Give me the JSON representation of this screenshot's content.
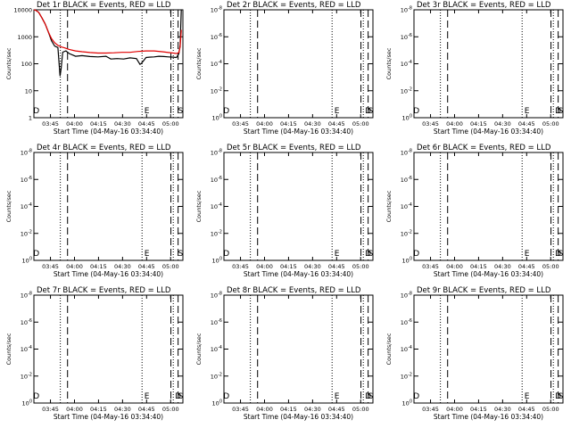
{
  "figure": {
    "background": "#ffffff",
    "axis_color": "#000000"
  },
  "chart_data": [
    {
      "type": "line",
      "title": "Det 1r BLACK = Events, RED = LLD",
      "xlabel": "Start Time (04-May-16 03:34:40)",
      "ylabel": "Counts/sec",
      "yscale": "log",
      "ylim": [
        1,
        10000
      ],
      "yticks": [
        {
          "value": 1,
          "label": "1"
        },
        {
          "value": 10,
          "label": "10"
        },
        {
          "value": 100,
          "label": "100"
        },
        {
          "value": 1000,
          "label": "1000"
        },
        {
          "value": 10000,
          "label": "10000"
        }
      ],
      "xlim_min": [
        0,
        93
      ],
      "xticks": [
        {
          "min": 10.33,
          "label": "03:45"
        },
        {
          "min": 25.33,
          "label": "04:00"
        },
        {
          "min": 40.33,
          "label": "04:15"
        },
        {
          "min": 55.33,
          "label": "04:30"
        },
        {
          "min": 70.33,
          "label": "04:45"
        },
        {
          "min": 85.33,
          "label": "05:00"
        }
      ],
      "markers": [
        {
          "min": 1.5,
          "label": "D"
        },
        {
          "min": 70.5,
          "label": "E"
        },
        {
          "min": 91.5,
          "label": "S"
        }
      ],
      "vlines_dotted": [
        16.5,
        67.5,
        87.0
      ],
      "vlines_dashed": [
        21.0,
        85.5,
        90.0
      ],
      "series": [
        {
          "name": "Events",
          "color": "#000000",
          "x": [
            0,
            1,
            3,
            5,
            7,
            9,
            11,
            13,
            15,
            16.3,
            17,
            18,
            20,
            22,
            26,
            30,
            35,
            40,
            45,
            48,
            52,
            56,
            60,
            64,
            66.2,
            66.8,
            68,
            70,
            72,
            75,
            78,
            81,
            84,
            87,
            89,
            90.5,
            91.3,
            92
          ],
          "y": [
            10000,
            9800,
            8000,
            5000,
            3000,
            1500,
            700,
            450,
            400,
            35,
            65,
            270,
            300,
            240,
            190,
            200,
            185,
            180,
            190,
            150,
            155,
            150,
            165,
            155,
            95,
            100,
            120,
            170,
            175,
            180,
            190,
            185,
            180,
            175,
            170,
            240,
            500,
            10000
          ]
        },
        {
          "name": "LLD",
          "color": "#e00000",
          "x": [
            0,
            1,
            3,
            5,
            7,
            9,
            11,
            13,
            15,
            17,
            19,
            22,
            26,
            30,
            35,
            40,
            45,
            50,
            55,
            60,
            65,
            70,
            75,
            80,
            84,
            87,
            89,
            90.5,
            91.3,
            92
          ],
          "y": [
            10000,
            9700,
            8000,
            5000,
            3000,
            1500,
            850,
            600,
            480,
            420,
            390,
            340,
            300,
            280,
            260,
            250,
            250,
            255,
            265,
            265,
            285,
            300,
            300,
            280,
            260,
            250,
            240,
            260,
            420,
            1800
          ]
        }
      ]
    },
    {
      "type": "line",
      "title": "Det 2r BLACK = Events, RED = LLD",
      "xlabel": "Start Time (04-May-16 03:34:40)",
      "ylabel": "Counts/sec",
      "yscale": "log",
      "ylim": [
        1,
        1e-08
      ],
      "yticks": [
        {
          "value": 1,
          "label": "10",
          "exp": "0"
        },
        {
          "value": 0.01,
          "label": "10",
          "exp": "-2"
        },
        {
          "value": 0.0001,
          "label": "10",
          "exp": "-4"
        },
        {
          "value": 1e-06,
          "label": "10",
          "exp": "-6"
        },
        {
          "value": 1e-08,
          "label": "10",
          "exp": "-8"
        }
      ],
      "xlim_min": [
        0,
        93
      ],
      "xticks": [
        {
          "min": 10.33,
          "label": "03:45"
        },
        {
          "min": 25.33,
          "label": "04:00"
        },
        {
          "min": 40.33,
          "label": "04:15"
        },
        {
          "min": 55.33,
          "label": "04:30"
        },
        {
          "min": 70.33,
          "label": "04:45"
        },
        {
          "min": 85.33,
          "label": "05:00"
        }
      ],
      "markers": [
        {
          "min": 1.5,
          "label": "D"
        },
        {
          "min": 70.5,
          "label": "E"
        },
        {
          "min": 90.0,
          "label": "D"
        },
        {
          "min": 91.5,
          "label": "S"
        }
      ],
      "vlines_dotted": [
        16.5,
        67.5,
        87.0
      ],
      "vlines_dashed": [
        21.0,
        85.5,
        90.0
      ],
      "series": []
    },
    {
      "type": "line",
      "title": "Det 3r BLACK = Events, RED = LLD",
      "xlabel": "Start Time (04-May-16 03:34:40)",
      "ylabel": "Counts/sec",
      "yscale": "log",
      "ylim": [
        1,
        1e-08
      ],
      "yticks": [
        {
          "value": 1,
          "label": "10",
          "exp": "0"
        },
        {
          "value": 0.01,
          "label": "10",
          "exp": "-2"
        },
        {
          "value": 0.0001,
          "label": "10",
          "exp": "-4"
        },
        {
          "value": 1e-06,
          "label": "10",
          "exp": "-6"
        },
        {
          "value": 1e-08,
          "label": "10",
          "exp": "-8"
        }
      ],
      "xlim_min": [
        0,
        93
      ],
      "xticks": [
        {
          "min": 10.33,
          "label": "03:45"
        },
        {
          "min": 25.33,
          "label": "04:00"
        },
        {
          "min": 40.33,
          "label": "04:15"
        },
        {
          "min": 55.33,
          "label": "04:30"
        },
        {
          "min": 70.33,
          "label": "04:45"
        },
        {
          "min": 85.33,
          "label": "05:00"
        }
      ],
      "markers": [
        {
          "min": 1.5,
          "label": "D"
        },
        {
          "min": 70.5,
          "label": "E"
        },
        {
          "min": 90.0,
          "label": "D"
        },
        {
          "min": 91.5,
          "label": "S"
        }
      ],
      "vlines_dotted": [
        16.5,
        67.5,
        87.0
      ],
      "vlines_dashed": [
        21.0,
        85.5,
        90.0
      ],
      "series": []
    },
    {
      "type": "line",
      "title": "Det 4r BLACK = Events, RED = LLD",
      "xlabel": "Start Time (04-May-16 03:34:40)",
      "ylabel": "Counts/sec",
      "yscale": "log",
      "ylim": [
        1,
        1e-08
      ],
      "yticks": [
        {
          "value": 1,
          "label": "10",
          "exp": "0"
        },
        {
          "value": 0.01,
          "label": "10",
          "exp": "-2"
        },
        {
          "value": 0.0001,
          "label": "10",
          "exp": "-4"
        },
        {
          "value": 1e-06,
          "label": "10",
          "exp": "-6"
        },
        {
          "value": 1e-08,
          "label": "10",
          "exp": "-8"
        }
      ],
      "xlim_min": [
        0,
        93
      ],
      "xticks": [
        {
          "min": 10.33,
          "label": "03:45"
        },
        {
          "min": 25.33,
          "label": "04:00"
        },
        {
          "min": 40.33,
          "label": "04:15"
        },
        {
          "min": 55.33,
          "label": "04:30"
        },
        {
          "min": 70.33,
          "label": "04:45"
        },
        {
          "min": 85.33,
          "label": "05:00"
        }
      ],
      "markers": [
        {
          "min": 1.5,
          "label": "D"
        },
        {
          "min": 70.5,
          "label": "E"
        },
        {
          "min": 91.5,
          "label": "S"
        }
      ],
      "vlines_dotted": [
        16.5,
        67.5,
        87.0
      ],
      "vlines_dashed": [
        21.0,
        85.5,
        90.0
      ],
      "series": []
    },
    {
      "type": "line",
      "title": "Det 5r BLACK = Events, RED = LLD",
      "xlabel": "Start Time (04-May-16 03:34:40)",
      "ylabel": "Counts/sec",
      "yscale": "log",
      "ylim": [
        1,
        1e-08
      ],
      "yticks": [
        {
          "value": 1,
          "label": "10",
          "exp": "0"
        },
        {
          "value": 0.01,
          "label": "10",
          "exp": "-2"
        },
        {
          "value": 0.0001,
          "label": "10",
          "exp": "-4"
        },
        {
          "value": 1e-06,
          "label": "10",
          "exp": "-6"
        },
        {
          "value": 1e-08,
          "label": "10",
          "exp": "-8"
        }
      ],
      "xlim_min": [
        0,
        93
      ],
      "xticks": [
        {
          "min": 10.33,
          "label": "03:45"
        },
        {
          "min": 25.33,
          "label": "04:00"
        },
        {
          "min": 40.33,
          "label": "04:15"
        },
        {
          "min": 55.33,
          "label": "04:30"
        },
        {
          "min": 70.33,
          "label": "04:45"
        },
        {
          "min": 85.33,
          "label": "05:00"
        }
      ],
      "markers": [
        {
          "min": 1.5,
          "label": "D"
        },
        {
          "min": 70.5,
          "label": "E"
        },
        {
          "min": 90.0,
          "label": "D"
        },
        {
          "min": 91.5,
          "label": "S"
        }
      ],
      "vlines_dotted": [
        16.5,
        67.5,
        87.0
      ],
      "vlines_dashed": [
        21.0,
        85.5,
        90.0
      ],
      "series": []
    },
    {
      "type": "line",
      "title": "Det 6r BLACK = Events, RED = LLD",
      "xlabel": "Start Time (04-May-16 03:34:40)",
      "ylabel": "Counts/sec",
      "yscale": "log",
      "ylim": [
        1,
        1e-08
      ],
      "yticks": [
        {
          "value": 1,
          "label": "10",
          "exp": "0"
        },
        {
          "value": 0.01,
          "label": "10",
          "exp": "-2"
        },
        {
          "value": 0.0001,
          "label": "10",
          "exp": "-4"
        },
        {
          "value": 1e-06,
          "label": "10",
          "exp": "-6"
        },
        {
          "value": 1e-08,
          "label": "10",
          "exp": "-8"
        }
      ],
      "xlim_min": [
        0,
        93
      ],
      "xticks": [
        {
          "min": 10.33,
          "label": "03:45"
        },
        {
          "min": 25.33,
          "label": "04:00"
        },
        {
          "min": 40.33,
          "label": "04:15"
        },
        {
          "min": 55.33,
          "label": "04:30"
        },
        {
          "min": 70.33,
          "label": "04:45"
        },
        {
          "min": 85.33,
          "label": "05:00"
        }
      ],
      "markers": [
        {
          "min": 1.5,
          "label": "D"
        },
        {
          "min": 70.5,
          "label": "E"
        },
        {
          "min": 90.0,
          "label": "D"
        },
        {
          "min": 91.5,
          "label": "S"
        }
      ],
      "vlines_dotted": [
        16.5,
        67.5,
        87.0
      ],
      "vlines_dashed": [
        21.0,
        85.5,
        90.0
      ],
      "series": []
    },
    {
      "type": "line",
      "title": "Det 7r BLACK = Events, RED = LLD",
      "xlabel": "Start Time (04-May-16 03:34:40)",
      "ylabel": "Counts/sec",
      "yscale": "log",
      "ylim": [
        1,
        1e-08
      ],
      "yticks": [
        {
          "value": 1,
          "label": "10",
          "exp": "0"
        },
        {
          "value": 0.01,
          "label": "10",
          "exp": "-2"
        },
        {
          "value": 0.0001,
          "label": "10",
          "exp": "-4"
        },
        {
          "value": 1e-06,
          "label": "10",
          "exp": "-6"
        },
        {
          "value": 1e-08,
          "label": "10",
          "exp": "-8"
        }
      ],
      "xlim_min": [
        0,
        93
      ],
      "xticks": [
        {
          "min": 10.33,
          "label": "03:45"
        },
        {
          "min": 25.33,
          "label": "04:00"
        },
        {
          "min": 40.33,
          "label": "04:15"
        },
        {
          "min": 55.33,
          "label": "04:30"
        },
        {
          "min": 70.33,
          "label": "04:45"
        },
        {
          "min": 85.33,
          "label": "05:00"
        }
      ],
      "markers": [
        {
          "min": 1.5,
          "label": "D"
        },
        {
          "min": 70.5,
          "label": "E"
        },
        {
          "min": 90.0,
          "label": "D"
        },
        {
          "min": 91.5,
          "label": "S"
        }
      ],
      "vlines_dotted": [
        16.5,
        67.5,
        87.0
      ],
      "vlines_dashed": [
        21.0,
        85.5,
        90.0
      ],
      "series": []
    },
    {
      "type": "line",
      "title": "Det 8r BLACK = Events, RED = LLD",
      "xlabel": "Start Time (04-May-16 03:34:40)",
      "ylabel": "Counts/sec",
      "yscale": "log",
      "ylim": [
        1,
        1e-08
      ],
      "yticks": [
        {
          "value": 1,
          "label": "10",
          "exp": "0"
        },
        {
          "value": 0.01,
          "label": "10",
          "exp": "-2"
        },
        {
          "value": 0.0001,
          "label": "10",
          "exp": "-4"
        },
        {
          "value": 1e-06,
          "label": "10",
          "exp": "-6"
        },
        {
          "value": 1e-08,
          "label": "10",
          "exp": "-8"
        }
      ],
      "xlim_min": [
        0,
        93
      ],
      "xticks": [
        {
          "min": 10.33,
          "label": "03:45"
        },
        {
          "min": 25.33,
          "label": "04:00"
        },
        {
          "min": 40.33,
          "label": "04:15"
        },
        {
          "min": 55.33,
          "label": "04:30"
        },
        {
          "min": 70.33,
          "label": "04:45"
        },
        {
          "min": 85.33,
          "label": "05:00"
        }
      ],
      "markers": [
        {
          "min": 1.5,
          "label": "D"
        },
        {
          "min": 70.5,
          "label": "E"
        },
        {
          "min": 90.0,
          "label": "D"
        },
        {
          "min": 91.5,
          "label": "S"
        }
      ],
      "vlines_dotted": [
        16.5,
        67.5,
        87.0
      ],
      "vlines_dashed": [
        21.0,
        85.5,
        90.0
      ],
      "series": []
    },
    {
      "type": "line",
      "title": "Det 9r BLACK = Events, RED = LLD",
      "xlabel": "Start Time (04-May-16 03:34:40)",
      "ylabel": "Counts/sec",
      "yscale": "log",
      "ylim": [
        1,
        1e-08
      ],
      "yticks": [
        {
          "value": 1,
          "label": "10",
          "exp": "0"
        },
        {
          "value": 0.01,
          "label": "10",
          "exp": "-2"
        },
        {
          "value": 0.0001,
          "label": "10",
          "exp": "-4"
        },
        {
          "value": 1e-06,
          "label": "10",
          "exp": "-6"
        },
        {
          "value": 1e-08,
          "label": "10",
          "exp": "-8"
        }
      ],
      "xlim_min": [
        0,
        93
      ],
      "xticks": [
        {
          "min": 10.33,
          "label": "03:45"
        },
        {
          "min": 25.33,
          "label": "04:00"
        },
        {
          "min": 40.33,
          "label": "04:15"
        },
        {
          "min": 55.33,
          "label": "04:30"
        },
        {
          "min": 70.33,
          "label": "04:45"
        },
        {
          "min": 85.33,
          "label": "05:00"
        }
      ],
      "markers": [
        {
          "min": 1.5,
          "label": "D"
        },
        {
          "min": 70.5,
          "label": "E"
        },
        {
          "min": 90.0,
          "label": "D"
        },
        {
          "min": 91.5,
          "label": "S"
        }
      ],
      "vlines_dotted": [
        16.5,
        67.5,
        87.0
      ],
      "vlines_dashed": [
        21.0,
        85.5,
        90.0
      ],
      "series": []
    }
  ]
}
